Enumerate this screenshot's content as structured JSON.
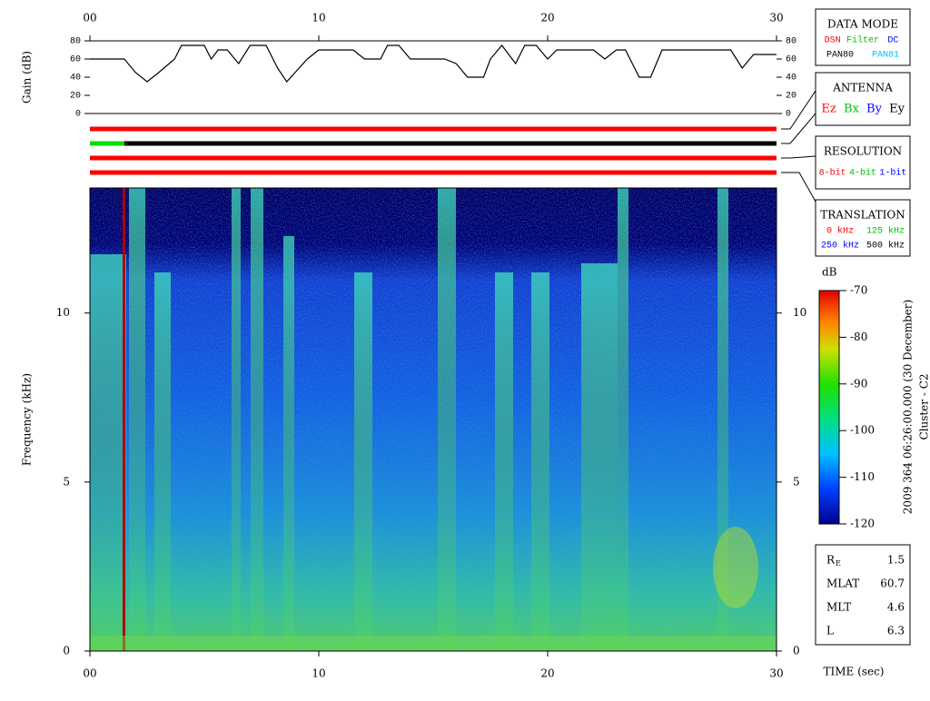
{
  "chart_data": [
    {
      "type": "line",
      "ylabel": "Gain (dB)",
      "color": "#000000",
      "x": [
        0,
        1.5,
        2,
        2.5,
        3,
        3.7,
        4,
        5,
        5.3,
        5.6,
        6,
        6.5,
        7,
        7.7,
        8.2,
        8.6,
        9.5,
        10,
        11.5,
        12,
        12.7,
        13,
        13.5,
        14,
        15.5,
        16,
        16.5,
        17.2,
        17.5,
        18,
        18.6,
        19,
        19.5,
        20,
        20.4,
        22,
        22.5,
        23,
        23.4,
        24,
        24.5,
        25,
        28,
        28.5,
        29,
        30
      ],
      "values": [
        60,
        60,
        45,
        35,
        45,
        60,
        75,
        75,
        60,
        70,
        70,
        55,
        75,
        75,
        50,
        35,
        60,
        70,
        70,
        60,
        60,
        75,
        75,
        60,
        60,
        55,
        40,
        40,
        60,
        75,
        55,
        75,
        75,
        60,
        70,
        70,
        60,
        70,
        70,
        40,
        40,
        70,
        70,
        50,
        65,
        65
      ],
      "xlim": [
        0,
        30
      ],
      "xticks": [
        {
          "value": 0,
          "label": "00"
        },
        10,
        20,
        30
      ],
      "ylim": [
        0,
        80
      ],
      "yticks": [
        0,
        20,
        40,
        60,
        80
      ]
    },
    {
      "type": "heatmap",
      "xlabel": "TIME (sec)",
      "ylabel": "Frequency (kHz)",
      "xlim": [
        0,
        30
      ],
      "xticks": [
        {
          "value": 0,
          "label": "00"
        },
        10,
        20,
        30
      ],
      "ylim": [
        0,
        13.7
      ],
      "yticks": [
        0,
        5,
        10
      ],
      "colorbar": {
        "label": "dB",
        "lim": [
          -120,
          -70
        ],
        "ticks": [
          -70,
          -80,
          -90,
          -100,
          -110,
          -120
        ]
      }
    }
  ],
  "status_bars": [
    {
      "segments": [
        {
          "from": 0,
          "to": 30,
          "color": "#ff0000"
        }
      ]
    },
    {
      "segments": [
        {
          "from": 0,
          "to": 1.5,
          "color": "#00e000"
        },
        {
          "from": 1.5,
          "to": 30,
          "color": "#000000"
        }
      ]
    },
    {
      "segments": [
        {
          "from": 0,
          "to": 30,
          "color": "#ff0000"
        }
      ]
    },
    {
      "segments": [
        {
          "from": 0,
          "to": 30,
          "color": "#ff0000"
        }
      ]
    }
  ],
  "panels": [
    {
      "title": "DATA MODE",
      "rows": [
        [
          {
            "text": "DSN",
            "color": "#ff0000"
          },
          {
            "text": "Filter",
            "color": "#00c000"
          },
          {
            "text": "DC",
            "color": "#0000ff"
          }
        ],
        [
          {
            "text": "PAN80",
            "color": "#000000"
          },
          {
            "text": "PAN81",
            "color": "#00c0ff"
          }
        ]
      ]
    },
    {
      "title": "ANTENNA",
      "rows": [
        [
          {
            "text": "Ez",
            "color": "#ff0000"
          },
          {
            "text": "Bx",
            "color": "#00c000"
          },
          {
            "text": "By",
            "color": "#0000ff"
          },
          {
            "text": "Ey",
            "color": "#000000"
          }
        ]
      ]
    },
    {
      "title": "RESOLUTION",
      "rows": [
        [
          {
            "text": "8-bit",
            "color": "#ff0000"
          },
          {
            "text": "4-bit",
            "color": "#00c000"
          },
          {
            "text": "1-bit",
            "color": "#0000ff"
          }
        ]
      ]
    },
    {
      "title": "TRANSLATION",
      "rows": [
        [
          {
            "text": "0 kHz",
            "color": "#ff0000"
          },
          {
            "text": "125 kHz",
            "color": "#00c000"
          }
        ],
        [
          {
            "text": "250 kHz",
            "color": "#0000ff"
          },
          {
            "text": "500 kHz",
            "color": "#000000"
          }
        ]
      ]
    }
  ],
  "timestamp": "2009 364 06:26:00.000 (30 December)",
  "spacecraft": "Cluster - C2",
  "orbit": [
    {
      "label": "R",
      "sub": "E",
      "value": 1.5
    },
    {
      "label": "MLAT",
      "value": 60.7
    },
    {
      "label": "MLT",
      "value": 4.6
    },
    {
      "label": "L",
      "value": 6.3
    }
  ]
}
